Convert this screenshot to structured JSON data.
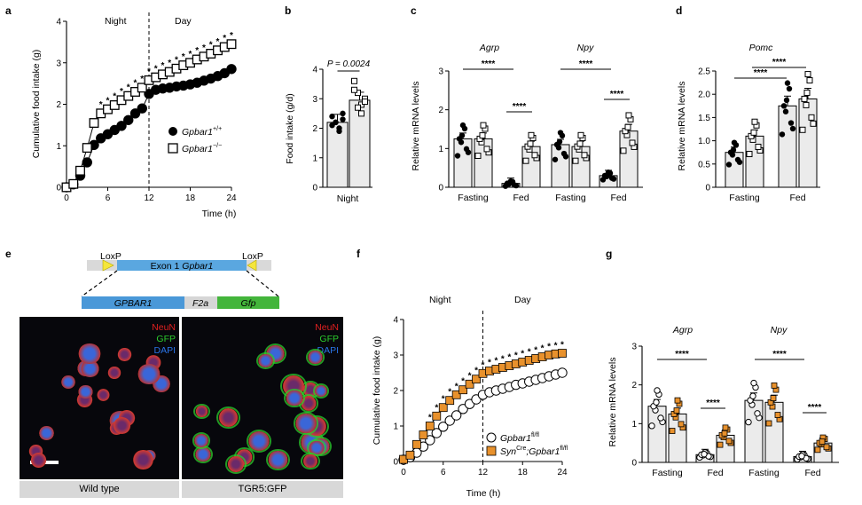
{
  "panels": {
    "a": {
      "label": "a",
      "night": "Night",
      "day": "Day",
      "ylabel": "Cumulative food intake (g)",
      "xlabel": "Time (h)",
      "xticks": [
        "0",
        "6",
        "12",
        "18",
        "24"
      ],
      "yticks": [
        "0",
        "1",
        "2",
        "3",
        "4"
      ],
      "legend": [
        {
          "name": "Gpbar1",
          "sup": "+/+",
          "marker": "filled-circle"
        },
        {
          "name": "Gpbar1",
          "sup": "−/−",
          "marker": "open-square"
        }
      ]
    },
    "b": {
      "label": "b",
      "ylabel": "Food intake (g/d)",
      "xlabel": "Night",
      "yticks": [
        "0",
        "1",
        "2",
        "3",
        "4"
      ],
      "pvalue": "P = 0.0024"
    },
    "c": {
      "label": "c",
      "ylabel": "Relative mRNA levels",
      "genes": [
        "Agrp",
        "Npy"
      ],
      "groups": [
        "Fasting",
        "Fed",
        "Fasting",
        "Fed"
      ],
      "yticks": [
        "0",
        "1",
        "2",
        "3"
      ],
      "sig": [
        "****",
        "****",
        "****",
        "****"
      ]
    },
    "d": {
      "label": "d",
      "ylabel": "Relative mRNA levels",
      "gene": "Pomc",
      "groups": [
        "Fasting",
        "Fed"
      ],
      "yticks": [
        "0",
        "0.5",
        "1.0",
        "1.5",
        "2.0",
        "2.5"
      ],
      "sig": [
        "****",
        "****"
      ]
    },
    "e": {
      "label": "e",
      "loxp_left": "LoxP",
      "loxp_right": "LoxP",
      "exon": "Exon 1",
      "exon_gene": "Gpbar1",
      "cassette": [
        "GPBAR1",
        "F2a",
        "Gfp"
      ],
      "stain_labels": [
        "NeuN",
        "GFP",
        "DAPI"
      ],
      "captions": [
        "Wild type",
        "TGR5:GFP"
      ]
    },
    "f": {
      "label": "f",
      "night": "Night",
      "day": "Day",
      "ylabel": "Cumulative food intake (g)",
      "xlabel": "Time (h)",
      "xticks": [
        "0",
        "6",
        "12",
        "18",
        "24"
      ],
      "yticks": [
        "0",
        "1",
        "2",
        "3",
        "4"
      ],
      "legend": [
        {
          "name": "Gpbar1",
          "sup": "fl/fl",
          "marker": "open-circle"
        },
        {
          "name_prefix": "Syn",
          "prefix_sup": "Cre",
          "name": "Gpbar1",
          "sup": "fl/fl",
          "marker": "orange-square"
        }
      ]
    },
    "g": {
      "label": "g",
      "ylabel": "Relative mRNA levels",
      "genes": [
        "Agrp",
        "Npy"
      ],
      "groups": [
        "Fasting",
        "Fed",
        "Fasting",
        "Fed"
      ],
      "yticks": [
        "0",
        "1",
        "2",
        "3"
      ],
      "sig": [
        "****",
        "****",
        "****",
        "****"
      ]
    }
  },
  "colors": {
    "orange": "#e8912c",
    "bar_fill": "#ebebeb",
    "neun": "#e02020",
    "gfp": "#2ccc2c",
    "dapi": "#2a74e8",
    "exon": "#5aa7e0",
    "cassette_gpbar1": "#4a98d8",
    "cassette_gfp": "#43b53b",
    "loxp": "#f5e63c"
  },
  "chart_data": [
    {
      "panel": "a",
      "type": "line",
      "xlabel": "Time (h)",
      "ylabel": "Cumulative food intake (g)",
      "xlim": [
        0,
        24
      ],
      "ylim": [
        0,
        4
      ],
      "annotations": [
        "Night",
        "Day"
      ],
      "series": [
        {
          "name": "Gpbar1+/+",
          "marker": "filled-circle",
          "x": [
            0,
            1,
            2,
            3,
            4,
            5,
            6,
            7,
            8,
            9,
            10,
            11,
            12,
            13,
            14,
            15,
            16,
            17,
            18,
            19,
            20,
            21,
            22,
            23,
            24
          ],
          "y": [
            0,
            0.07,
            0.28,
            0.6,
            1.02,
            1.18,
            1.28,
            1.38,
            1.48,
            1.62,
            1.78,
            1.9,
            2.25,
            2.35,
            2.38,
            2.4,
            2.43,
            2.45,
            2.48,
            2.52,
            2.57,
            2.62,
            2.68,
            2.75,
            2.85
          ]
        },
        {
          "name": "Gpbar1−/−",
          "marker": "open-square",
          "x": [
            0,
            1,
            2,
            3,
            4,
            5,
            6,
            7,
            8,
            9,
            10,
            11,
            12,
            13,
            14,
            15,
            16,
            17,
            18,
            19,
            20,
            21,
            22,
            23,
            24
          ],
          "y": [
            0,
            0.08,
            0.4,
            0.95,
            1.55,
            1.78,
            1.88,
            1.98,
            2.1,
            2.2,
            2.3,
            2.4,
            2.58,
            2.65,
            2.72,
            2.78,
            2.86,
            2.94,
            3.0,
            3.08,
            3.15,
            3.22,
            3.3,
            3.38,
            3.45
          ]
        }
      ],
      "significance_marks": "*"
    },
    {
      "panel": "b",
      "type": "bar",
      "xlabel": "Night",
      "ylabel": "Food intake (g/d)",
      "ylim": [
        0,
        4
      ],
      "annotations": [
        "P = 0.0024"
      ],
      "series": [
        {
          "name": "Gpbar1+/+",
          "mean": 2.2,
          "points": [
            2.4,
            2.2,
            2.0,
            2.3,
            2.1,
            2.2,
            1.9,
            2.5
          ]
        },
        {
          "name": "Gpbar1−/−",
          "mean": 2.95,
          "points": [
            3.6,
            3.2,
            2.8,
            3.0,
            3.3,
            2.7,
            2.5,
            2.9
          ]
        }
      ]
    },
    {
      "panel": "c",
      "type": "bar",
      "ylabel": "Relative mRNA levels",
      "ylim": [
        0,
        3
      ],
      "categories": [
        "Agrp Fasting",
        "Agrp Fed",
        "Npy Fasting",
        "Npy Fed"
      ],
      "series": [
        {
          "name": "Gpbar1+/+",
          "values": [
            1.25,
            0.1,
            1.1,
            0.3
          ]
        },
        {
          "name": "Gpbar1−/−",
          "values": [
            1.25,
            1.05,
            1.05,
            1.45
          ]
        }
      ],
      "annotations": [
        "****",
        "****",
        "****",
        "****"
      ]
    },
    {
      "panel": "d",
      "type": "bar",
      "ylabel": "Relative mRNA levels",
      "ylim": [
        0,
        2.5
      ],
      "categories": [
        "Pomc Fasting",
        "Pomc Fed"
      ],
      "series": [
        {
          "name": "Gpbar1+/+",
          "values": [
            0.75,
            1.75
          ]
        },
        {
          "name": "Gpbar1−/−",
          "values": [
            1.1,
            1.9
          ]
        }
      ],
      "annotations": [
        "****",
        "****"
      ]
    },
    {
      "panel": "f",
      "type": "line",
      "xlabel": "Time (h)",
      "ylabel": "Cumulative food intake (g)",
      "xlim": [
        0,
        24
      ],
      "ylim": [
        0,
        4
      ],
      "annotations": [
        "Night",
        "Day"
      ],
      "series": [
        {
          "name": "Gpbar1fl/fl",
          "marker": "open-circle",
          "x": [
            0,
            1,
            2,
            3,
            4,
            5,
            6,
            7,
            8,
            9,
            10,
            11,
            12,
            13,
            14,
            15,
            16,
            17,
            18,
            19,
            20,
            21,
            22,
            23,
            24
          ],
          "y": [
            0.05,
            0.12,
            0.25,
            0.42,
            0.6,
            0.8,
            0.98,
            1.15,
            1.3,
            1.48,
            1.62,
            1.75,
            1.88,
            1.95,
            2.0,
            2.05,
            2.1,
            2.16,
            2.2,
            2.25,
            2.3,
            2.35,
            2.4,
            2.45,
            2.5
          ]
        },
        {
          "name": "SynCre;Gpbar1fl/fl",
          "marker": "orange-square",
          "x": [
            0,
            1,
            2,
            3,
            4,
            5,
            6,
            7,
            8,
            9,
            10,
            11,
            12,
            13,
            14,
            15,
            16,
            17,
            18,
            19,
            20,
            21,
            22,
            23,
            24
          ],
          "y": [
            0.06,
            0.18,
            0.48,
            0.75,
            1.0,
            1.28,
            1.52,
            1.72,
            1.88,
            2.02,
            2.18,
            2.32,
            2.48,
            2.55,
            2.6,
            2.65,
            2.7,
            2.75,
            2.8,
            2.85,
            2.9,
            2.95,
            3.0,
            3.03,
            3.05
          ]
        }
      ],
      "significance_marks": "*"
    },
    {
      "panel": "g",
      "type": "bar",
      "ylabel": "Relative mRNA levels",
      "ylim": [
        0,
        3
      ],
      "categories": [
        "Agrp Fasting",
        "Agrp Fed",
        "Npy Fasting",
        "Npy Fed"
      ],
      "series": [
        {
          "name": "Gpbar1fl/fl",
          "values": [
            1.45,
            0.2,
            1.6,
            0.15
          ]
        },
        {
          "name": "SynCre;Gpbar1fl/fl",
          "values": [
            1.25,
            0.7,
            1.55,
            0.5
          ]
        }
      ],
      "annotations": [
        "****",
        "****",
        "****",
        "****"
      ]
    }
  ]
}
